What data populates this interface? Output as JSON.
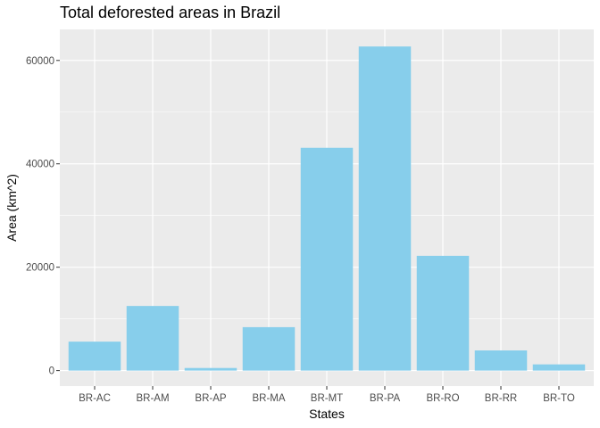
{
  "chart_data": {
    "type": "bar",
    "title": "Total deforested areas in Brazil",
    "xlabel": "States",
    "ylabel": "Area (km^2)",
    "categories": [
      "BR-AC",
      "BR-AM",
      "BR-AP",
      "BR-MA",
      "BR-MT",
      "BR-PA",
      "BR-RO",
      "BR-RR",
      "BR-TO"
    ],
    "values": [
      5600,
      12500,
      500,
      8400,
      43100,
      62700,
      22200,
      3900,
      1200
    ],
    "yticks": [
      0,
      20000,
      40000,
      60000
    ],
    "ylim": [
      -3000,
      66000
    ],
    "grid": true,
    "colors": {
      "bar": "#87CEEB",
      "panel": "#EBEBEB",
      "grid": "#FFFFFF"
    }
  }
}
